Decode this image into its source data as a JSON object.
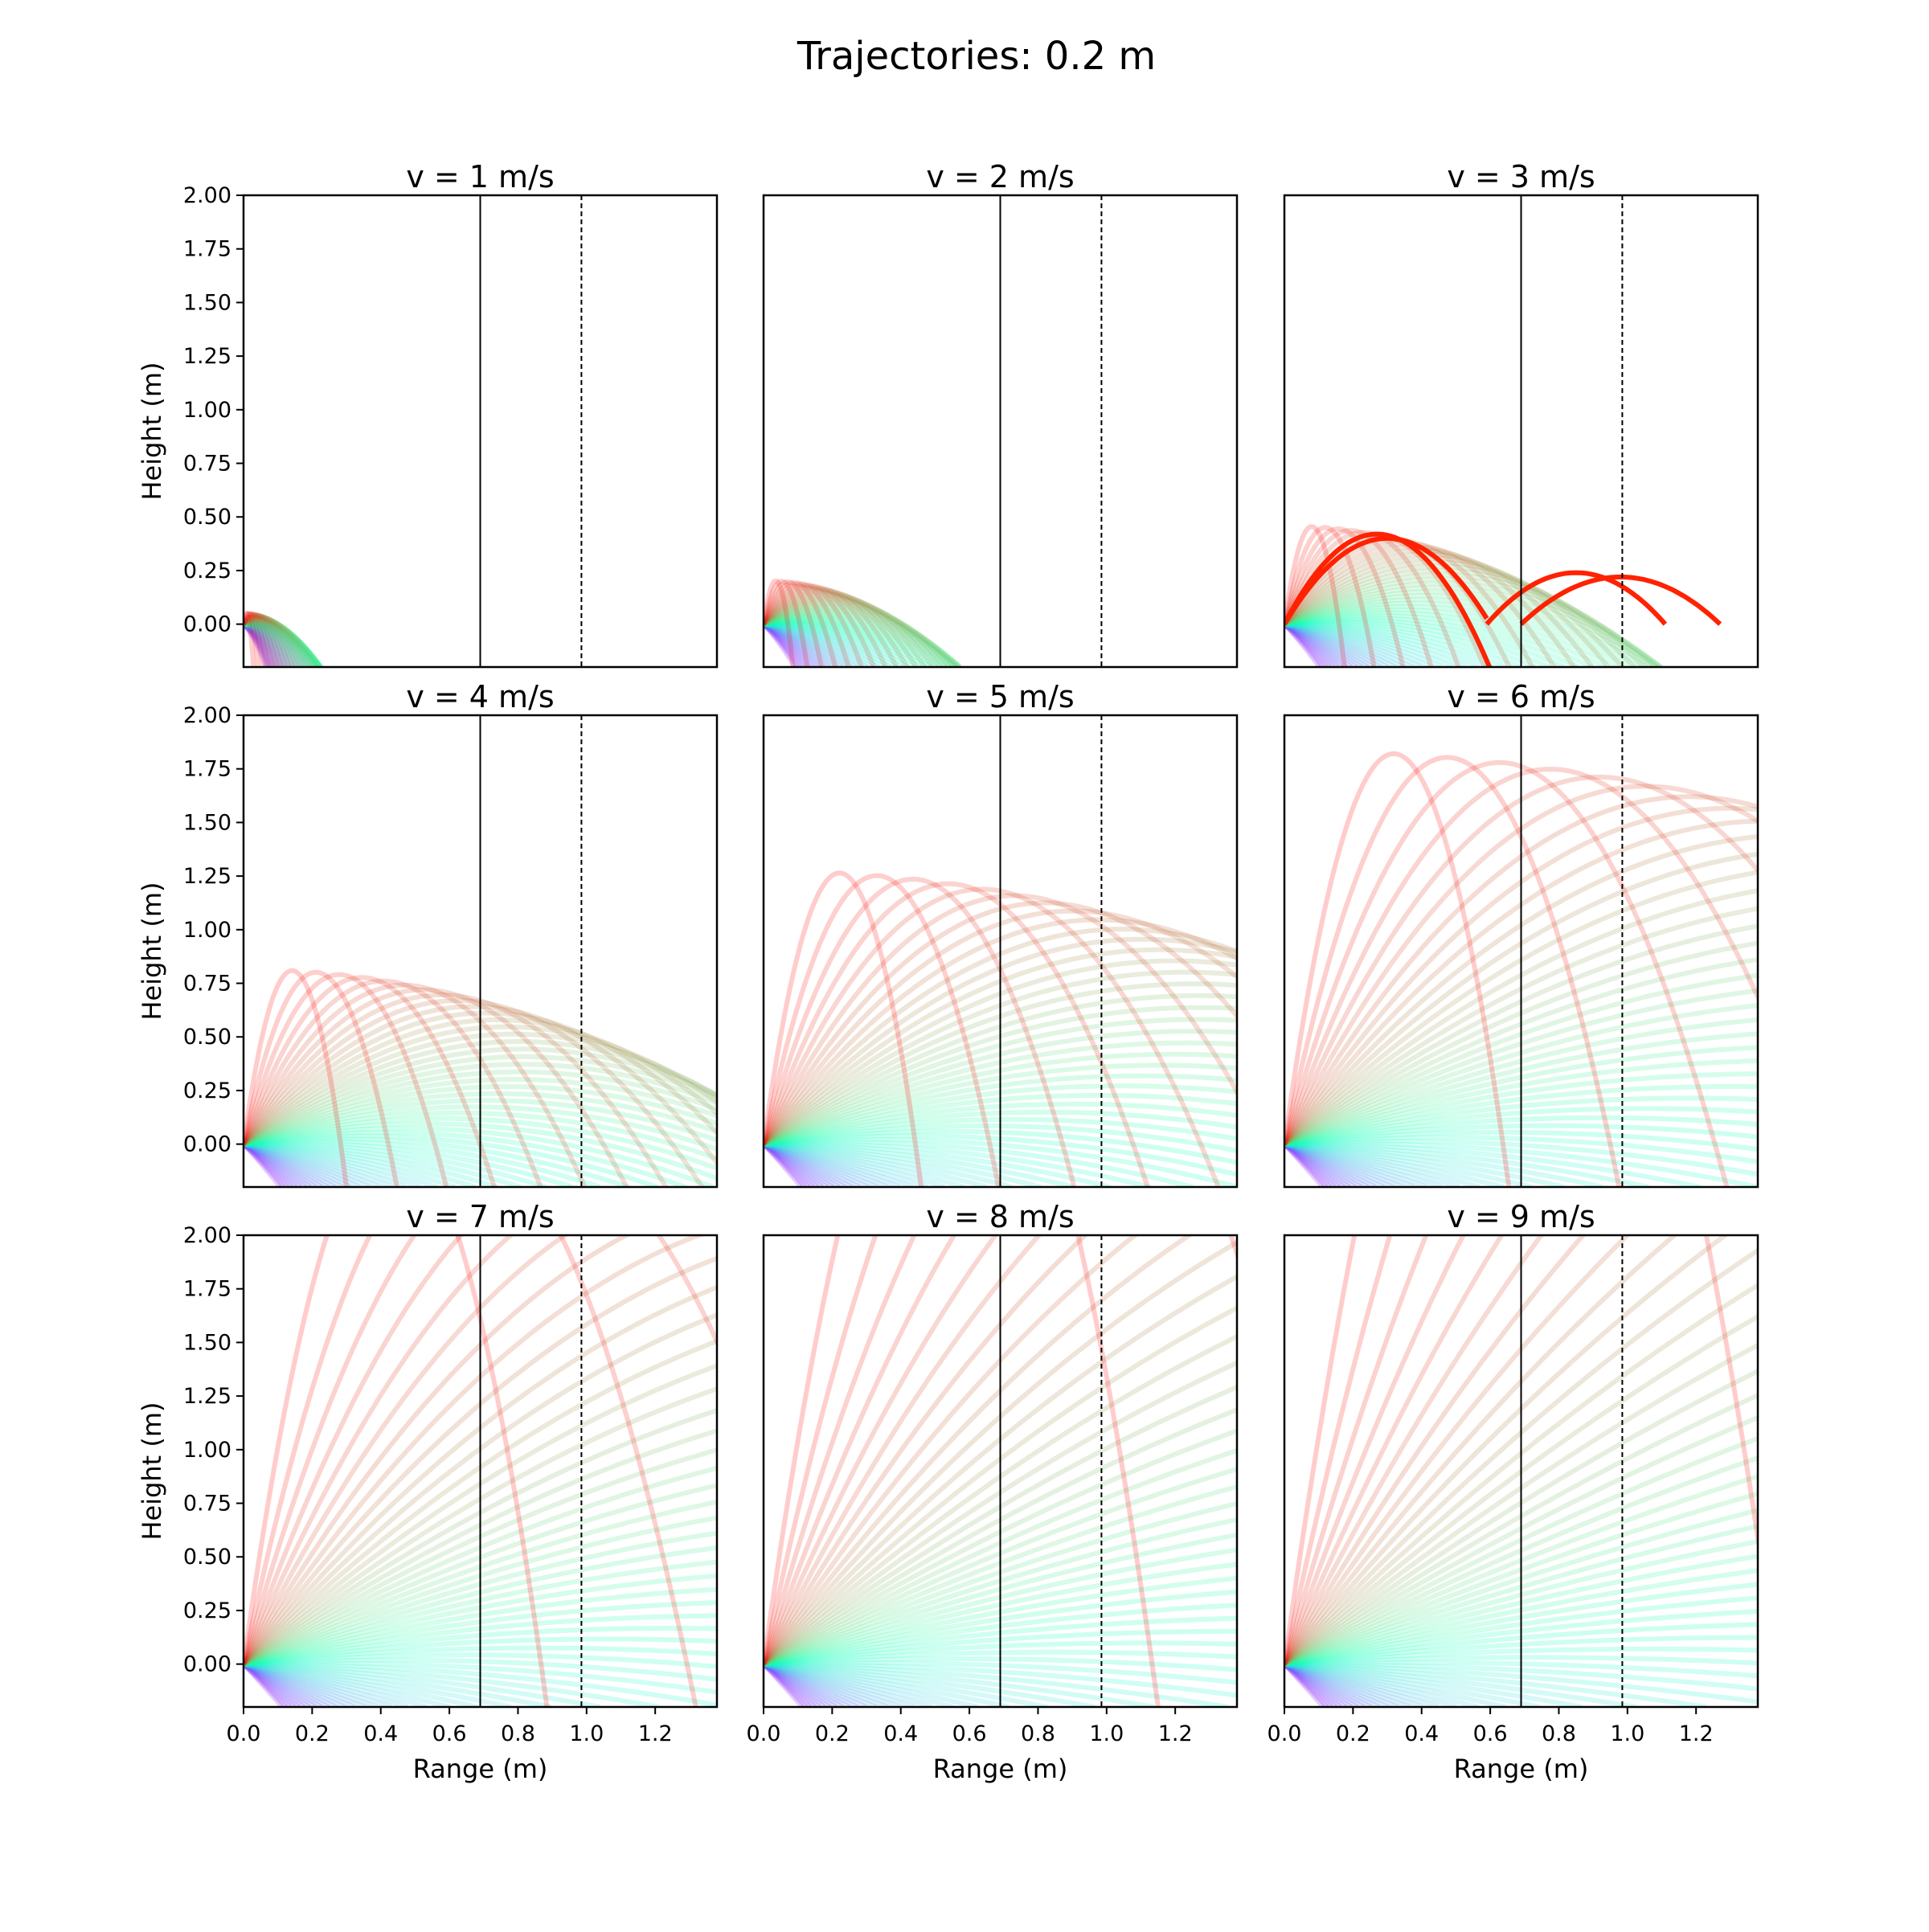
{
  "figure": {
    "suptitle": "Trajectories: 0.2 m",
    "x_tick_labels": [
      "0.0",
      "0.2",
      "0.4",
      "0.6",
      "0.8",
      "1.0",
      "1.2"
    ],
    "y_tick_labels": [
      "−0.00",
      "0.25",
      "0.50",
      "0.75",
      "1.00",
      "1.25",
      "1.50",
      "1.75",
      "2.00"
    ],
    "y_ticks_display": [
      "0.00",
      "0.25",
      "0.50",
      "0.75",
      "1.00",
      "1.25",
      "1.50",
      "1.75",
      "2.00"
    ]
  },
  "chart_data": {
    "type": "line",
    "title": "Trajectories: 0.2 m",
    "layout": "3x3 grid",
    "xlabel": "Range (m)",
    "ylabel": "Height (m)",
    "xlim": [
      0,
      1.38
    ],
    "ylim": [
      -0.2,
      2.0
    ],
    "x_ticks": [
      0.0,
      0.2,
      0.4,
      0.6,
      0.8,
      1.0,
      1.2
    ],
    "y_ticks": [
      0.0,
      0.25,
      0.5,
      0.75,
      1.0,
      1.25,
      1.5,
      1.75,
      2.0
    ],
    "vertical_lines": [
      {
        "x": 0.69,
        "style": "solid",
        "color": "#000000"
      },
      {
        "x": 0.985,
        "style": "dashed",
        "color": "#000000"
      }
    ],
    "launch_angles_deg": {
      "min": -60,
      "max": 85,
      "step": 2.5
    },
    "colormap": "rainbow (low angle violet to high angle red)",
    "background_trajectory_alpha": 0.2,
    "highlight_color": "#ff2200",
    "panels": [
      {
        "title": "v = 1 m/s",
        "v": 1,
        "highlighted_trajectories": []
      },
      {
        "title": "v = 2 m/s",
        "v": 2,
        "highlighted_trajectories": []
      },
      {
        "title": "v = 3 m/s",
        "v": 3,
        "highlighted_trajectories": [
          {
            "peak_x": 0.27,
            "peak_y": 0.42,
            "land_x": 0.69
          },
          {
            "peak_x": 0.3,
            "peak_y": 0.4,
            "land_x": 0.59
          },
          {
            "start_x": 0.59,
            "peak_x": 0.85,
            "peak_y": 0.24,
            "end_x": 1.11,
            "end_y": -0.2
          },
          {
            "start_x": 0.69,
            "peak_x": 0.98,
            "peak_y": 0.22,
            "end_x": 1.27,
            "end_y": -0.2
          }
        ]
      },
      {
        "title": "v = 4 m/s",
        "v": 4,
        "highlighted_trajectories": []
      },
      {
        "title": "v = 5 m/s",
        "v": 5,
        "highlighted_trajectories": []
      },
      {
        "title": "v = 6 m/s",
        "v": 6,
        "highlighted_trajectories": []
      },
      {
        "title": "v = 7 m/s",
        "v": 7,
        "highlighted_trajectories": []
      },
      {
        "title": "v = 8 m/s",
        "v": 8,
        "highlighted_trajectories": []
      },
      {
        "title": "v = 9 m/s",
        "v": 9,
        "highlighted_trajectories": []
      }
    ]
  }
}
